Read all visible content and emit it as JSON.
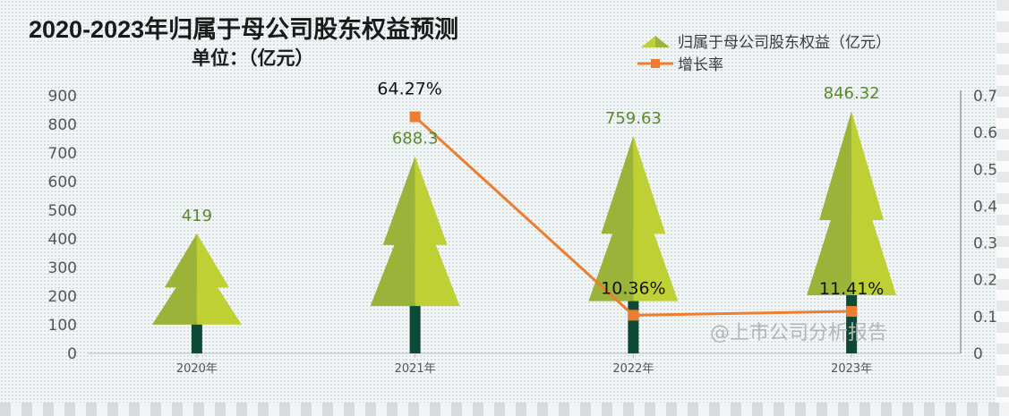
{
  "chart_data": {
    "type": "bar",
    "title": "2020-2023年归属于母公司股东权益预测",
    "subtitle": "单位：（亿元）",
    "categories": [
      "2020年",
      "2021年",
      "2022年",
      "2023年"
    ],
    "series": [
      {
        "name": "归属于母公司股东权益（亿元）",
        "type": "bar",
        "axis": "left",
        "values": [
          419,
          688.3,
          759.63,
          846.32
        ],
        "labels": [
          "419",
          "688.3",
          "759.63",
          "846.32"
        ],
        "color": "#a8c23a"
      },
      {
        "name": "增长率",
        "type": "line",
        "axis": "right",
        "values": [
          null,
          0.6427,
          0.1036,
          0.1141
        ],
        "labels": [
          "",
          "64.27%",
          "10.36%",
          "11.41%"
        ],
        "color": "#ed7d31"
      }
    ],
    "y_left": {
      "min": 0,
      "max": 900,
      "ticks": [
        0,
        100,
        200,
        300,
        400,
        500,
        600,
        700,
        800,
        900
      ]
    },
    "y_right": {
      "min": 0,
      "max": 0.7,
      "ticks": [
        "0",
        "0.1",
        "0.2",
        "0.3",
        "0.4",
        "0.5",
        "0.6",
        "0.7"
      ]
    },
    "legend_position": "top-right",
    "grid": false,
    "watermark": "@上市公司分析报告"
  },
  "colors": {
    "tree_light": "#bfd035",
    "tree_dark": "#9cb33a",
    "trunk": "#0d4a35",
    "value_label": "#5a8a2a",
    "axis_text": "#555555",
    "line": "#ed7d31",
    "watermark": "#b5b5b5"
  }
}
